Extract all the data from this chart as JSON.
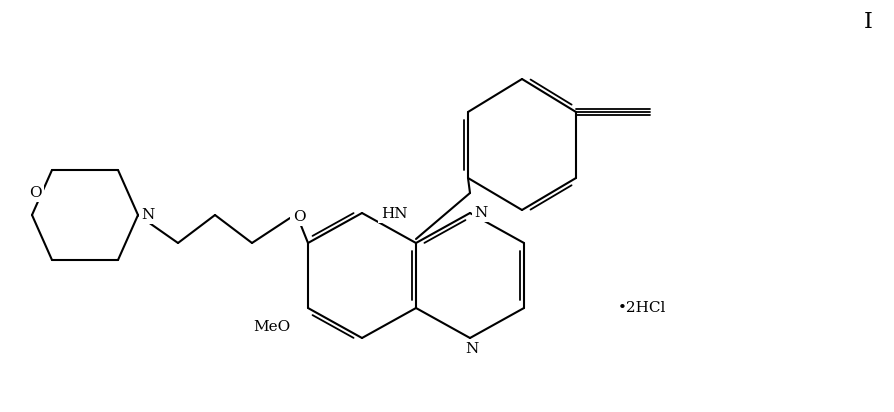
{
  "bg_color": "#ffffff",
  "line_color": "#000000",
  "lw": 1.5,
  "lw2": 1.3,
  "fig_width": 8.94,
  "fig_height": 4.12,
  "dpi": 100,
  "label_I": "I",
  "label_HN": "HN",
  "label_N_top": "N",
  "label_N_bot": "N",
  "label_O_morph": "O",
  "label_O_chain": "O",
  "label_N_morph": "N",
  "label_MeO": "MeO",
  "label_2HCl": "•2HCl",
  "fs": 11,
  "fs_I": 16
}
